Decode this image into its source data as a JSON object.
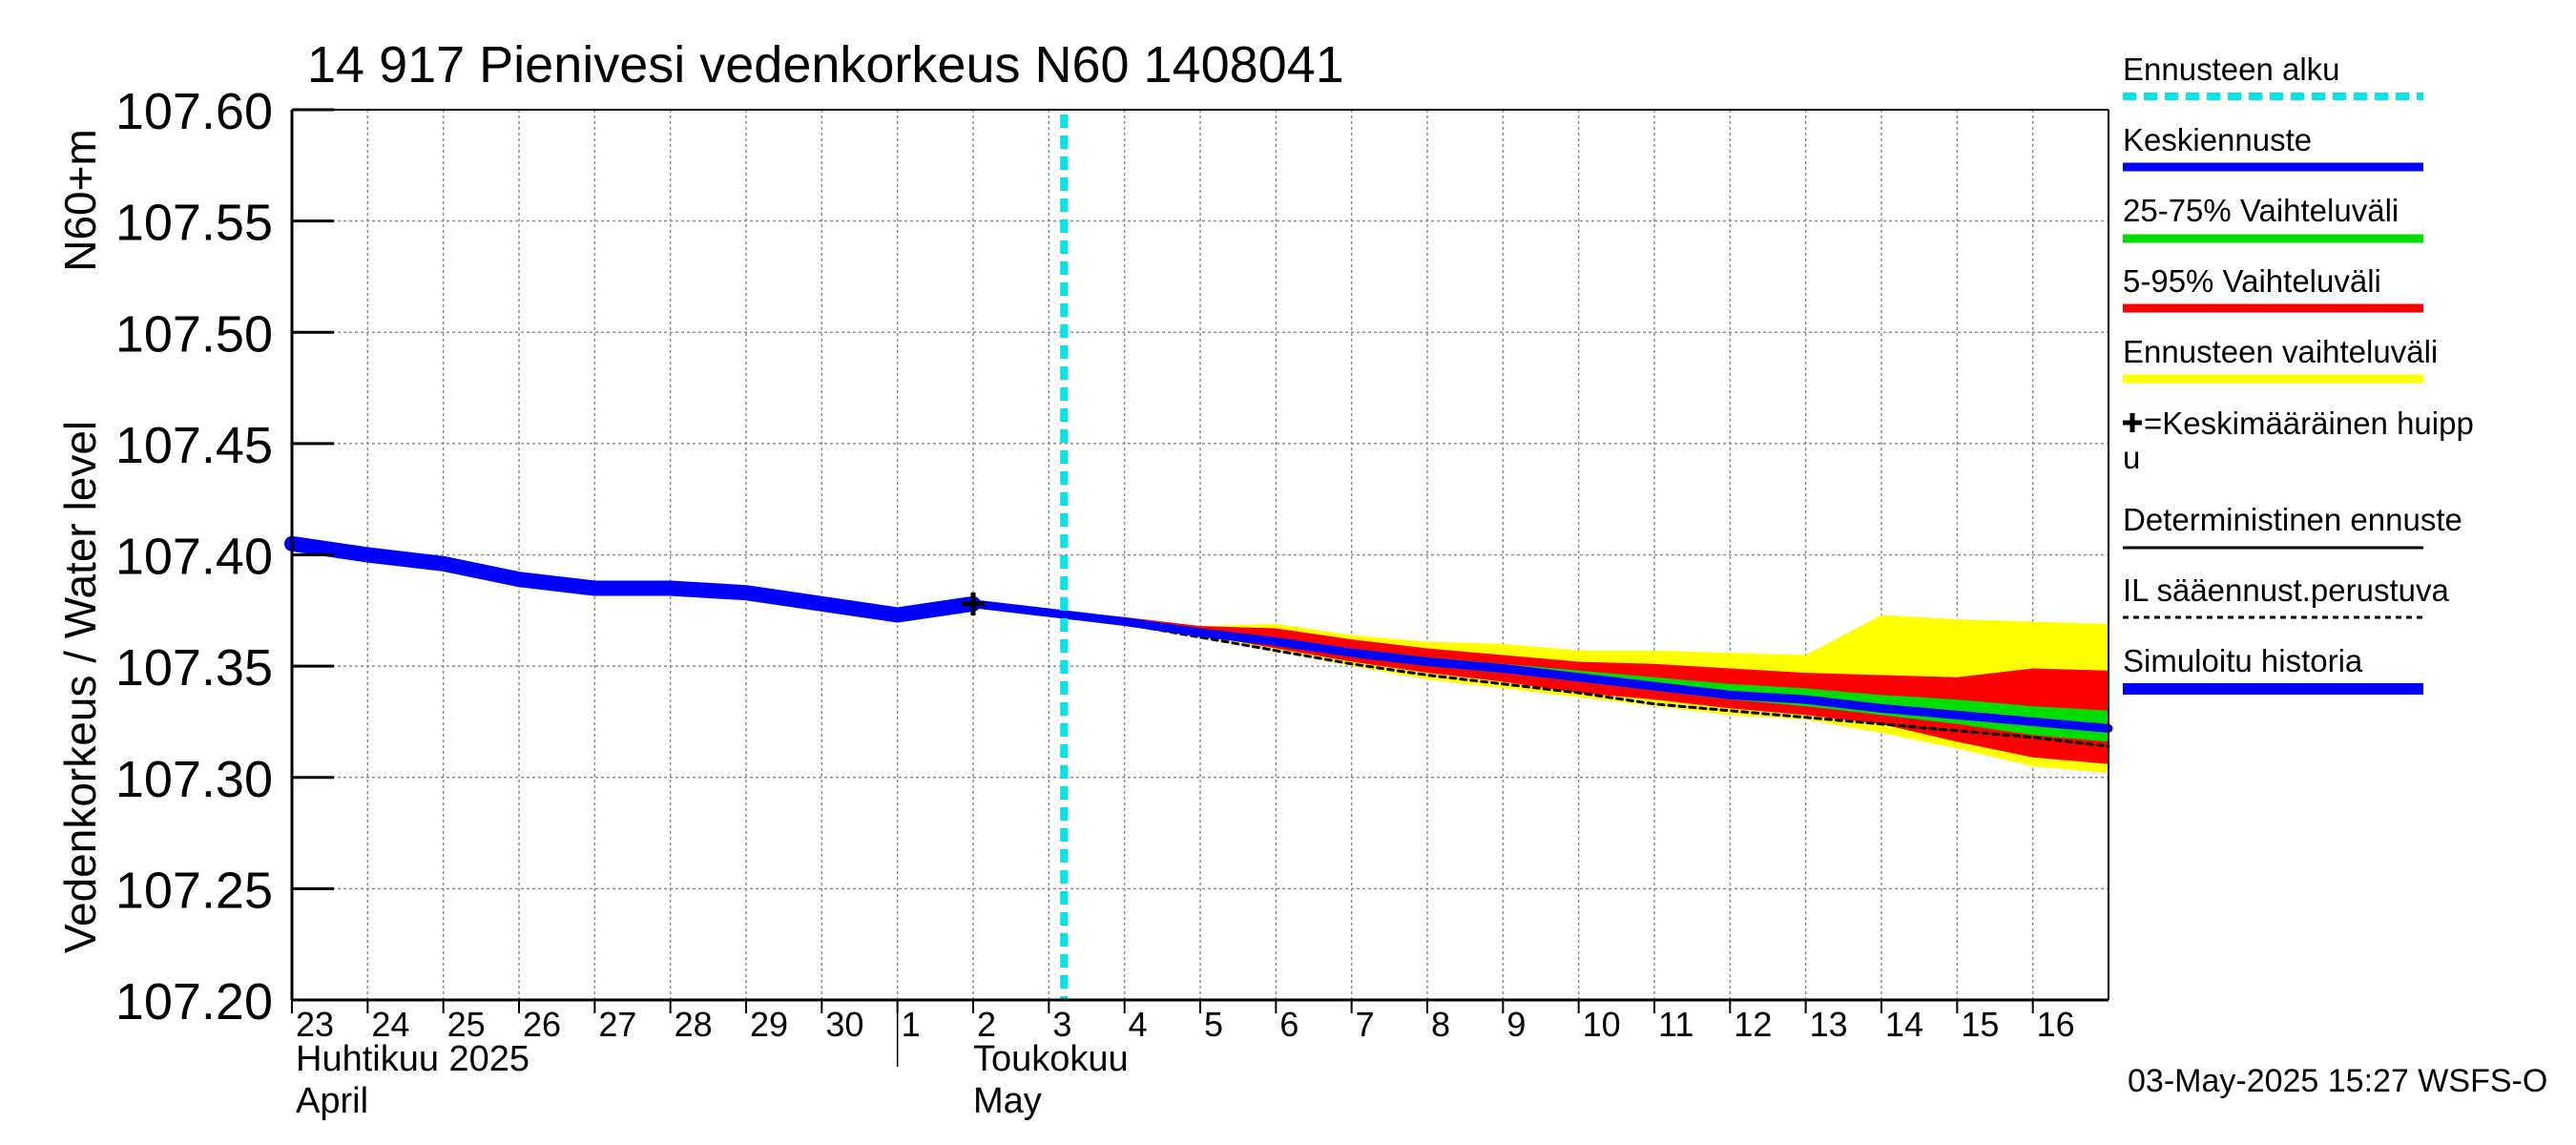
{
  "chart_data": {
    "type": "line",
    "title": "14 917 Pienivesi vedenkorkeus N60 1408041",
    "ylabel_main": "Vedenkorkeus / Water level",
    "ylabel_unit": "N60+m",
    "ylim": [
      107.2,
      107.6
    ],
    "yticks": [
      "107.60",
      "107.55",
      "107.50",
      "107.45",
      "107.40",
      "107.35",
      "107.30",
      "107.25",
      "107.20"
    ],
    "x_start_day": 23,
    "x_end_day": 47,
    "days": [
      {
        "label": "23",
        "day": 23
      },
      {
        "label": "24",
        "day": 24
      },
      {
        "label": "25",
        "day": 25
      },
      {
        "label": "26",
        "day": 26
      },
      {
        "label": "27",
        "day": 27
      },
      {
        "label": "28",
        "day": 28
      },
      {
        "label": "29",
        "day": 29
      },
      {
        "label": "30",
        "day": 30
      },
      {
        "label": "1",
        "day": 31
      },
      {
        "label": "2",
        "day": 32
      },
      {
        "label": "3",
        "day": 33
      },
      {
        "label": "4",
        "day": 34
      },
      {
        "label": "5",
        "day": 35
      },
      {
        "label": "6",
        "day": 36
      },
      {
        "label": "7",
        "day": 37
      },
      {
        "label": "8",
        "day": 38
      },
      {
        "label": "9",
        "day": 39
      },
      {
        "label": "10",
        "day": 40
      },
      {
        "label": "11",
        "day": 41
      },
      {
        "label": "12",
        "day": 42
      },
      {
        "label": "13",
        "day": 43
      },
      {
        "label": "14",
        "day": 44
      },
      {
        "label": "15",
        "day": 45
      },
      {
        "label": "16",
        "day": 46
      }
    ],
    "month_labels": {
      "april_fi": "Huhtikuu  2025",
      "april_en": "April",
      "may_fi": "Toukokuu",
      "may_en": "May"
    },
    "forecast_start_day": 33.2,
    "peak_marker": {
      "day": 32,
      "value": 107.378
    },
    "series": {
      "simulated_history": {
        "x": [
          23,
          24,
          25,
          26,
          27,
          28,
          29,
          30,
          31,
          32
        ],
        "y": [
          107.405,
          107.4,
          107.396,
          107.389,
          107.385,
          107.385,
          107.383,
          107.378,
          107.373,
          107.378
        ]
      },
      "mean_forecast": {
        "x": [
          32,
          33,
          34,
          35,
          36,
          37,
          38,
          39,
          40,
          41,
          42,
          43,
          44,
          45,
          46,
          47
        ],
        "y": [
          107.378,
          107.374,
          107.37,
          107.365,
          107.361,
          107.356,
          107.352,
          107.349,
          107.345,
          107.341,
          107.337,
          107.335,
          107.331,
          107.328,
          107.325,
          107.322
        ]
      },
      "il_forecast": {
        "x": [
          32,
          33,
          34,
          35,
          36,
          37,
          38,
          39,
          40,
          41,
          42,
          43,
          44,
          45,
          46,
          47
        ],
        "y": [
          107.378,
          107.374,
          107.369,
          107.363,
          107.357,
          107.351,
          107.346,
          107.342,
          107.338,
          107.333,
          107.33,
          107.327,
          107.324,
          107.321,
          107.318,
          107.314
        ]
      },
      "band_ennuste_upper": [
        107.378,
        107.375,
        107.372,
        107.368,
        107.369,
        107.364,
        107.361,
        107.36,
        107.357,
        107.357,
        107.356,
        107.355,
        107.373,
        107.371,
        107.37,
        107.369
      ],
      "band_ennuste_lower": [
        107.378,
        107.374,
        107.369,
        107.363,
        107.357,
        107.35,
        107.344,
        107.34,
        107.336,
        107.332,
        107.328,
        107.326,
        107.32,
        107.313,
        107.305,
        107.302
      ],
      "band_5_95_upper": [
        107.378,
        107.375,
        107.372,
        107.368,
        107.367,
        107.362,
        107.358,
        107.355,
        107.352,
        107.351,
        107.349,
        107.347,
        107.346,
        107.345,
        107.349,
        107.348
      ],
      "band_5_95_lower": [
        107.378,
        107.374,
        107.369,
        107.364,
        107.358,
        107.352,
        107.347,
        107.343,
        107.338,
        107.335,
        107.331,
        107.328,
        107.324,
        107.316,
        107.309,
        107.306
      ],
      "band_25_75_upper": [
        107.378,
        107.375,
        107.371,
        107.366,
        107.362,
        107.358,
        107.354,
        107.351,
        107.348,
        107.345,
        107.342,
        107.34,
        107.337,
        107.335,
        107.332,
        107.33
      ],
      "band_25_75_lower": [
        107.378,
        107.374,
        107.37,
        107.365,
        107.36,
        107.355,
        107.35,
        107.347,
        107.343,
        107.339,
        107.335,
        107.332,
        107.328,
        107.324,
        107.319,
        107.316
      ]
    },
    "colors": {
      "mean": "#0000ff",
      "history": "#0000ff",
      "band_25_75": "#00dd00",
      "band_5_95": "#ff0000",
      "band_ennuste": "#ffff00",
      "forecast_start": "#00e5e5",
      "deterministic": "#000000",
      "il": "#000000"
    },
    "legend": [
      {
        "key": "start",
        "label": "Ennusteen alku"
      },
      {
        "key": "mean",
        "label": "Keskiennuste"
      },
      {
        "key": "b2575",
        "label": "25-75% Vaihteluväli"
      },
      {
        "key": "b595",
        "label": "5-95% Vaihteluväli"
      },
      {
        "key": "bens",
        "label": "Ennusteen vaihteluväli"
      },
      {
        "key": "peak",
        "label": "=Keskimääräinen huipp",
        "label2": "u"
      },
      {
        "key": "det",
        "label": "Deterministinen ennuste"
      },
      {
        "key": "il",
        "label": "IL sääennust.perustuva"
      },
      {
        "key": "hist",
        "label": "Simuloitu historia"
      }
    ],
    "timestamp": "03-May-2025 15:27 WSFS-O"
  }
}
